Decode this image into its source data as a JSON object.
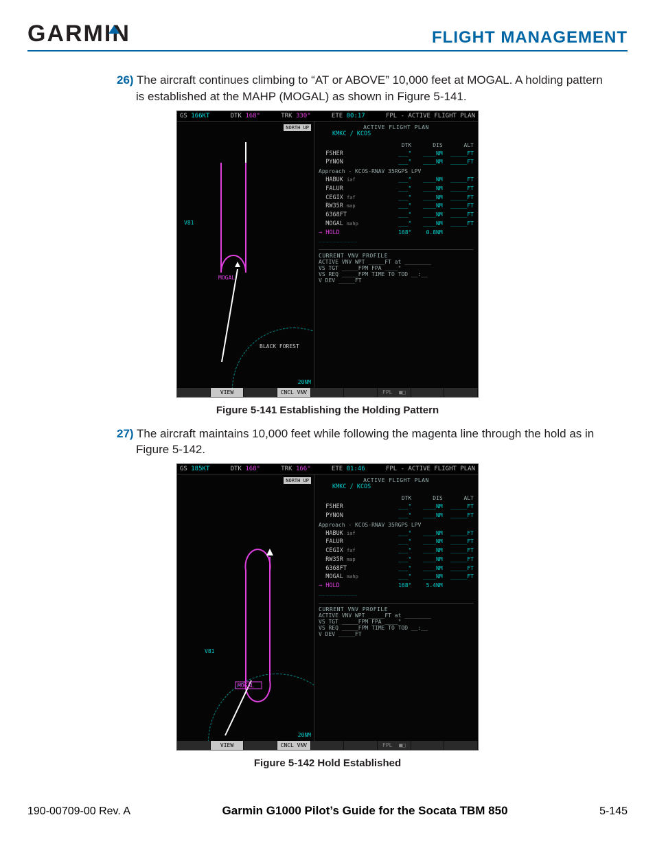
{
  "header": {
    "brand": "GARMIN",
    "section": "FLIGHT MANAGEMENT"
  },
  "step26": {
    "num": "26)",
    "text": "The aircraft continues climbing to “AT or ABOVE” 10,000 feet at MOGAL.  A holding pattern is established at the MAHP (MOGAL) as shown in Figure 5-141."
  },
  "fig1": {
    "caption": "Figure 5-141  Establishing the Holding Pattern"
  },
  "step27": {
    "num": "27)",
    "text": "The aircraft maintains 10,000 feet while following  the magenta line through the hold as in Figure 5-142."
  },
  "fig2": {
    "caption": "Figure 5-142  Hold Established"
  },
  "footer": {
    "left": "190-00709-00  Rev. A",
    "center": "Garmin G1000 Pilot’s Guide for the Socata TBM 850",
    "right": "5-145"
  },
  "screen_common": {
    "northup": "NORTH UP",
    "scale": "20NM",
    "fpl_title": "FPL - ACTIVE FLIGHT PLAN",
    "afp_title": "ACTIVE FLIGHT PLAN",
    "route": "KMKC / KCOS",
    "cols": {
      "dtk": "DTK",
      "dis": "DIS",
      "alt": "ALT"
    },
    "vnv_title": "CURRENT VNV PROFILE",
    "btm": {
      "view": "VIEW",
      "cncl": "CNCL VNV",
      "fpl": "FPL"
    },
    "waypoints": [
      {
        "name": "FSHER",
        "suffix": ""
      },
      {
        "name": "PYNON",
        "suffix": ""
      },
      {
        "name": "Approach - KCOS-RNAV 35RGPS LPV",
        "suffix": "",
        "header": true
      },
      {
        "name": "HABUK",
        "suffix": "iaf"
      },
      {
        "name": "FALUR",
        "suffix": ""
      },
      {
        "name": "CEGIX",
        "suffix": "faf"
      },
      {
        "name": "RW35R",
        "suffix": "map"
      },
      {
        "name": "6368FT",
        "suffix": ""
      },
      {
        "name": "MOGAL",
        "suffix": "mahp"
      }
    ],
    "vnv": {
      "r1": "ACTIVE VNV WPT   _____FT  at  ________",
      "r2": "VS TGT    _____FPM   FPA        ____°",
      "r3": "VS REQ    _____FPM   TIME TO TOD   __:__",
      "r4": "V DEV      _____FT"
    },
    "dashes": "___________"
  },
  "screen1": {
    "top": {
      "gs_l": "GS",
      "gs_v": "166KT",
      "dtk_l": "DTK",
      "dtk_v": "168°",
      "trk_l": "TRK",
      "trk_v": "330°",
      "ete_l": "ETE",
      "ete_v": "00:17"
    },
    "hold": {
      "dtk": "168°",
      "dis": "0.8NM"
    },
    "map_labels": {
      "v81": "V81",
      "mogal": "MOGAL",
      "blkf": "BLACK FOREST"
    }
  },
  "screen2": {
    "top": {
      "gs_l": "GS",
      "gs_v": "185KT",
      "dtk_l": "DTK",
      "dtk_v": "168°",
      "trk_l": "TRK",
      "trk_v": "166°",
      "ete_l": "ETE",
      "ete_v": "01:46"
    },
    "hold": {
      "dtk": "168°",
      "dis": "5.4NM"
    },
    "map_labels": {
      "v81": "V81",
      "mogal": "MOGAL"
    }
  }
}
